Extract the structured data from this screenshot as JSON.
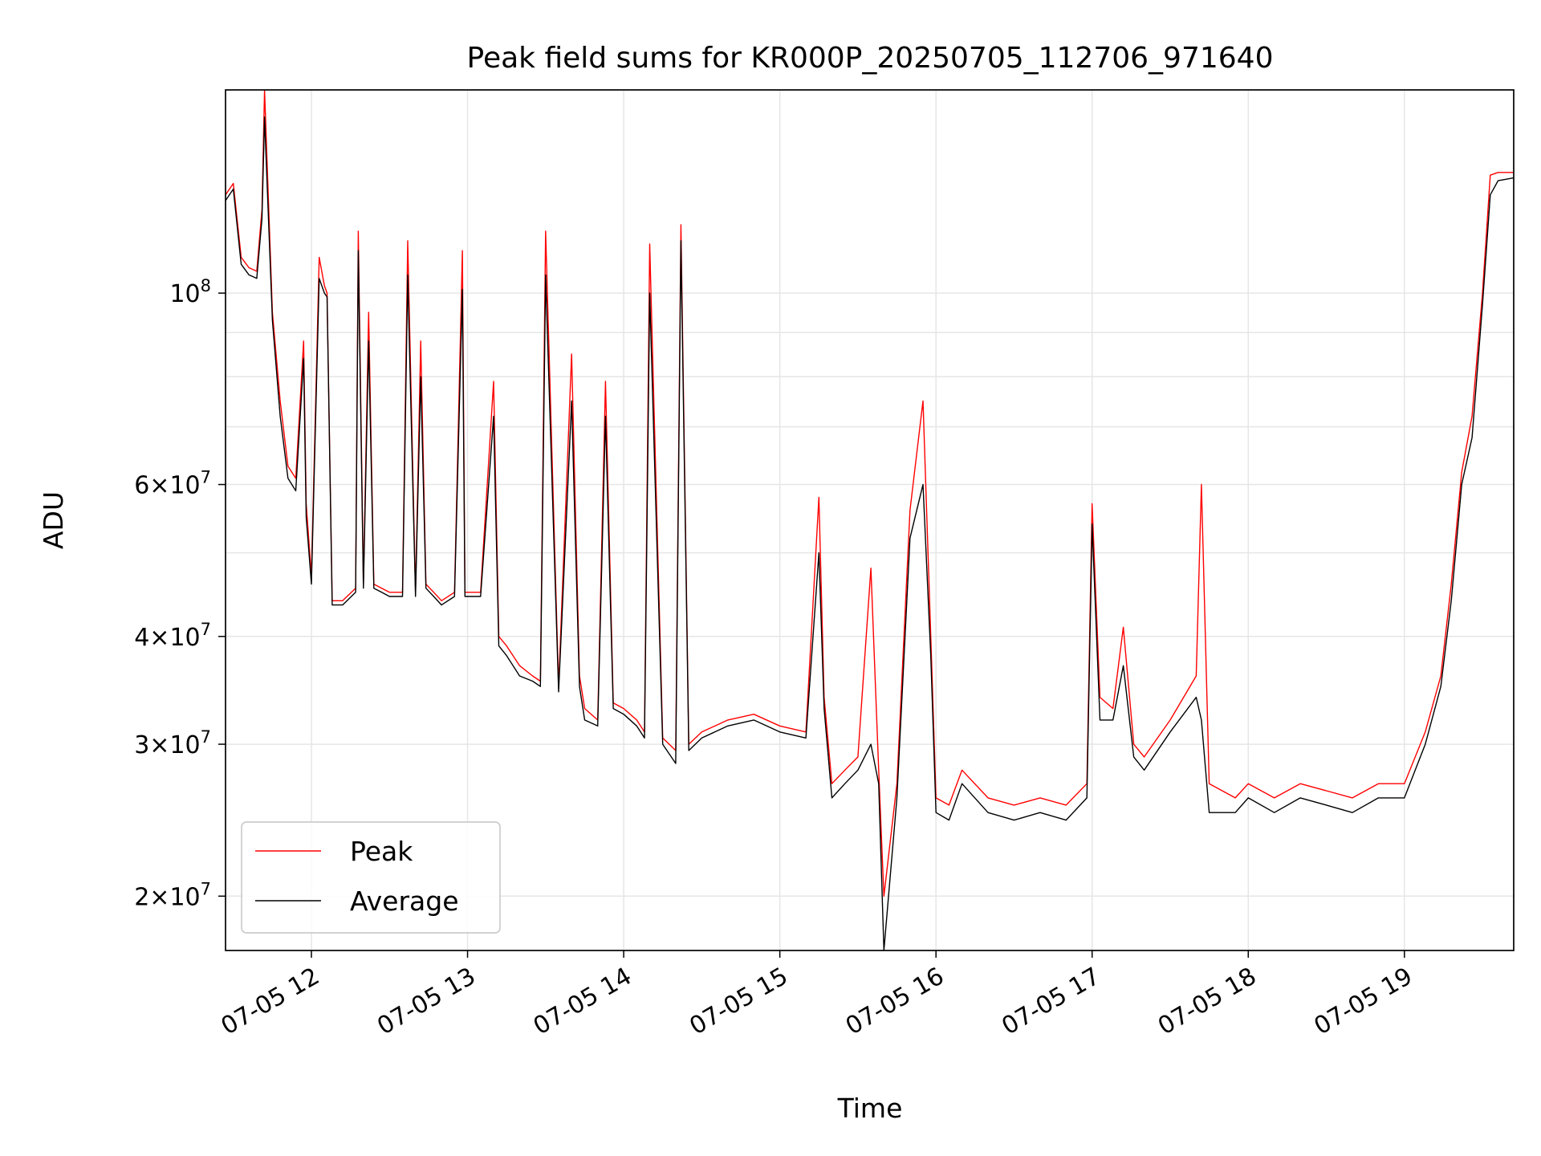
{
  "chart_data": {
    "type": "line",
    "title": "Peak field sums for KR000P_20250705_112706_971640",
    "xlabel": "Time",
    "ylabel": "ADU",
    "yscale": "log",
    "ylim": [
      17300000,
      172000000
    ],
    "xlim": [
      "2025-07-05 11:27",
      "2025-07-05 19:42"
    ],
    "grid": true,
    "legend_position": "lower-left",
    "x_ticks": [
      {
        "x": "2025-07-05 12:00",
        "label": "07-05 12"
      },
      {
        "x": "2025-07-05 13:00",
        "label": "07-05 13"
      },
      {
        "x": "2025-07-05 14:00",
        "label": "07-05 14"
      },
      {
        "x": "2025-07-05 15:00",
        "label": "07-05 15"
      },
      {
        "x": "2025-07-05 16:00",
        "label": "07-05 16"
      },
      {
        "x": "2025-07-05 17:00",
        "label": "07-05 17"
      },
      {
        "x": "2025-07-05 18:00",
        "label": "07-05 18"
      },
      {
        "x": "2025-07-05 19:00",
        "label": "07-05 19"
      }
    ],
    "y_ticks": [
      {
        "value": 20000000,
        "mantissa": "2",
        "exp": "7"
      },
      {
        "value": 30000000,
        "mantissa": "3",
        "exp": "7"
      },
      {
        "value": 40000000,
        "mantissa": "4",
        "exp": "7"
      },
      {
        "value": 60000000,
        "mantissa": "6",
        "exp": "7"
      },
      {
        "value": 100000000,
        "mantissa": "",
        "exp": "8"
      }
    ],
    "y_minor_grid": [
      50000000,
      70000000,
      80000000,
      90000000
    ],
    "series": [
      {
        "name": "Peak",
        "color": "#ff0000",
        "x": [
          "2025-07-05 11:27",
          "2025-07-05 11:30",
          "2025-07-05 11:33",
          "2025-07-05 11:36",
          "2025-07-05 11:39",
          "2025-07-05 11:41",
          "2025-07-05 11:42",
          "2025-07-05 11:45",
          "2025-07-05 11:48",
          "2025-07-05 11:51",
          "2025-07-05 11:54",
          "2025-07-05 11:57",
          "2025-07-05 11:58",
          "2025-07-05 12:00",
          "2025-07-05 12:03",
          "2025-07-05 12:05",
          "2025-07-05 12:06",
          "2025-07-05 12:08",
          "2025-07-05 12:12",
          "2025-07-05 12:17",
          "2025-07-05 12:18",
          "2025-07-05 12:20",
          "2025-07-05 12:22",
          "2025-07-05 12:24",
          "2025-07-05 12:27",
          "2025-07-05 12:30",
          "2025-07-05 12:33",
          "2025-07-05 12:35",
          "2025-07-05 12:37",
          "2025-07-05 12:40",
          "2025-07-05 12:42",
          "2025-07-05 12:44",
          "2025-07-05 12:47",
          "2025-07-05 12:50",
          "2025-07-05 12:55",
          "2025-07-05 12:58",
          "2025-07-05 12:59",
          "2025-07-05 13:00",
          "2025-07-05 13:05",
          "2025-07-05 13:10",
          "2025-07-05 13:12",
          "2025-07-05 13:15",
          "2025-07-05 13:20",
          "2025-07-05 13:25",
          "2025-07-05 13:28",
          "2025-07-05 13:30",
          "2025-07-05 13:35",
          "2025-07-05 13:40",
          "2025-07-05 13:43",
          "2025-07-05 13:45",
          "2025-07-05 13:50",
          "2025-07-05 13:53",
          "2025-07-05 13:56",
          "2025-07-05 14:00",
          "2025-07-05 14:05",
          "2025-07-05 14:08",
          "2025-07-05 14:10",
          "2025-07-05 14:15",
          "2025-07-05 14:20",
          "2025-07-05 14:22",
          "2025-07-05 14:25",
          "2025-07-05 14:30",
          "2025-07-05 14:40",
          "2025-07-05 14:50",
          "2025-07-05 15:00",
          "2025-07-05 15:10",
          "2025-07-05 15:15",
          "2025-07-05 15:17",
          "2025-07-05 15:20",
          "2025-07-05 15:25",
          "2025-07-05 15:30",
          "2025-07-05 15:35",
          "2025-07-05 15:38",
          "2025-07-05 15:40",
          "2025-07-05 15:45",
          "2025-07-05 15:50",
          "2025-07-05 15:55",
          "2025-07-05 15:58",
          "2025-07-05 16:00",
          "2025-07-05 16:05",
          "2025-07-05 16:10",
          "2025-07-05 16:20",
          "2025-07-05 16:30",
          "2025-07-05 16:40",
          "2025-07-05 16:50",
          "2025-07-05 16:58",
          "2025-07-05 17:00",
          "2025-07-05 17:03",
          "2025-07-05 17:08",
          "2025-07-05 17:12",
          "2025-07-05 17:16",
          "2025-07-05 17:20",
          "2025-07-05 17:30",
          "2025-07-05 17:40",
          "2025-07-05 17:42",
          "2025-07-05 17:45",
          "2025-07-05 17:55",
          "2025-07-05 18:00",
          "2025-07-05 18:10",
          "2025-07-05 18:20",
          "2025-07-05 18:30",
          "2025-07-05 18:40",
          "2025-07-05 18:50",
          "2025-07-05 19:00",
          "2025-07-05 19:08",
          "2025-07-05 19:14",
          "2025-07-05 19:18",
          "2025-07-05 19:22",
          "2025-07-05 19:26",
          "2025-07-05 19:30",
          "2025-07-05 19:33",
          "2025-07-05 19:36",
          "2025-07-05 19:42"
        ],
        "values": [
          130000000,
          134000000,
          110000000,
          107000000,
          106000000,
          125000000,
          172000000,
          95000000,
          75000000,
          63000000,
          61000000,
          88000000,
          57000000,
          47000000,
          110000000,
          102000000,
          100000000,
          44000000,
          44000000,
          45500000,
          118000000,
          46000000,
          95000000,
          46000000,
          45500000,
          45000000,
          45000000,
          45000000,
          115000000,
          45000000,
          88000000,
          46000000,
          45000000,
          44000000,
          45000000,
          112000000,
          45000000,
          45000000,
          45000000,
          79000000,
          40000000,
          39000000,
          37000000,
          36000000,
          35500000,
          118000000,
          35000000,
          85000000,
          36000000,
          33000000,
          32000000,
          79000000,
          33500000,
          33000000,
          32000000,
          31000000,
          114000000,
          30500000,
          29500000,
          120000000,
          30000000,
          31000000,
          32000000,
          32500000,
          31500000,
          31000000,
          58000000,
          34000000,
          27000000,
          28000000,
          29000000,
          48000000,
          28000000,
          20000000,
          27000000,
          56000000,
          75000000,
          40000000,
          26000000,
          25500000,
          28000000,
          26000000,
          25500000,
          26000000,
          25500000,
          27000000,
          57000000,
          34000000,
          33000000,
          41000000,
          30000000,
          29000000,
          32000000,
          36000000,
          60000000,
          27000000,
          26000000,
          27000000,
          26000000,
          27000000,
          26500000,
          26000000,
          27000000,
          27000000,
          31000000,
          36000000,
          46000000,
          62000000,
          72000000,
          100000000,
          137000000,
          138000000,
          138000000
        ]
      },
      {
        "name": "Average",
        "color": "#000000",
        "x": [
          "2025-07-05 11:27",
          "2025-07-05 11:30",
          "2025-07-05 11:33",
          "2025-07-05 11:36",
          "2025-07-05 11:39",
          "2025-07-05 11:41",
          "2025-07-05 11:42",
          "2025-07-05 11:45",
          "2025-07-05 11:48",
          "2025-07-05 11:51",
          "2025-07-05 11:54",
          "2025-07-05 11:57",
          "2025-07-05 11:58",
          "2025-07-05 12:00",
          "2025-07-05 12:03",
          "2025-07-05 12:05",
          "2025-07-05 12:06",
          "2025-07-05 12:08",
          "2025-07-05 12:12",
          "2025-07-05 12:17",
          "2025-07-05 12:18",
          "2025-07-05 12:20",
          "2025-07-05 12:22",
          "2025-07-05 12:24",
          "2025-07-05 12:27",
          "2025-07-05 12:30",
          "2025-07-05 12:33",
          "2025-07-05 12:35",
          "2025-07-05 12:37",
          "2025-07-05 12:40",
          "2025-07-05 12:42",
          "2025-07-05 12:44",
          "2025-07-05 12:47",
          "2025-07-05 12:50",
          "2025-07-05 12:55",
          "2025-07-05 12:58",
          "2025-07-05 12:59",
          "2025-07-05 13:00",
          "2025-07-05 13:05",
          "2025-07-05 13:10",
          "2025-07-05 13:12",
          "2025-07-05 13:15",
          "2025-07-05 13:20",
          "2025-07-05 13:25",
          "2025-07-05 13:28",
          "2025-07-05 13:30",
          "2025-07-05 13:35",
          "2025-07-05 13:40",
          "2025-07-05 13:43",
          "2025-07-05 13:45",
          "2025-07-05 13:50",
          "2025-07-05 13:53",
          "2025-07-05 13:56",
          "2025-07-05 14:00",
          "2025-07-05 14:05",
          "2025-07-05 14:08",
          "2025-07-05 14:10",
          "2025-07-05 14:15",
          "2025-07-05 14:20",
          "2025-07-05 14:22",
          "2025-07-05 14:25",
          "2025-07-05 14:30",
          "2025-07-05 14:40",
          "2025-07-05 14:50",
          "2025-07-05 15:00",
          "2025-07-05 15:10",
          "2025-07-05 15:15",
          "2025-07-05 15:17",
          "2025-07-05 15:20",
          "2025-07-05 15:25",
          "2025-07-05 15:30",
          "2025-07-05 15:35",
          "2025-07-05 15:38",
          "2025-07-05 15:40",
          "2025-07-05 15:45",
          "2025-07-05 15:50",
          "2025-07-05 15:55",
          "2025-07-05 15:58",
          "2025-07-05 16:00",
          "2025-07-05 16:05",
          "2025-07-05 16:10",
          "2025-07-05 16:20",
          "2025-07-05 16:30",
          "2025-07-05 16:40",
          "2025-07-05 16:50",
          "2025-07-05 16:58",
          "2025-07-05 17:00",
          "2025-07-05 17:03",
          "2025-07-05 17:08",
          "2025-07-05 17:12",
          "2025-07-05 17:16",
          "2025-07-05 17:20",
          "2025-07-05 17:30",
          "2025-07-05 17:40",
          "2025-07-05 17:42",
          "2025-07-05 17:45",
          "2025-07-05 17:55",
          "2025-07-05 18:00",
          "2025-07-05 18:10",
          "2025-07-05 18:20",
          "2025-07-05 18:30",
          "2025-07-05 18:40",
          "2025-07-05 18:50",
          "2025-07-05 19:00",
          "2025-07-05 19:08",
          "2025-07-05 19:14",
          "2025-07-05 19:18",
          "2025-07-05 19:22",
          "2025-07-05 19:26",
          "2025-07-05 19:30",
          "2025-07-05 19:33",
          "2025-07-05 19:36",
          "2025-07-05 19:42"
        ],
        "values": [
          128000000,
          132000000,
          108000000,
          105000000,
          104000000,
          122000000,
          160000000,
          93000000,
          72000000,
          61000000,
          59000000,
          84000000,
          55000000,
          46000000,
          104000000,
          100000000,
          99000000,
          43500000,
          43500000,
          45000000,
          112000000,
          45500000,
          88000000,
          45500000,
          45000000,
          44500000,
          44500000,
          44500000,
          105000000,
          44500000,
          80000000,
          45500000,
          44500000,
          43500000,
          44500000,
          101000000,
          44500000,
          44500000,
          44500000,
          72000000,
          39000000,
          38000000,
          36000000,
          35500000,
          35000000,
          105000000,
          34500000,
          75000000,
          35000000,
          32000000,
          31500000,
          72000000,
          33000000,
          32500000,
          31500000,
          30500000,
          100000000,
          30000000,
          28500000,
          115000000,
          29500000,
          30500000,
          31500000,
          32000000,
          31000000,
          30500000,
          50000000,
          33000000,
          26000000,
          27000000,
          28000000,
          30000000,
          27000000,
          17300000,
          26000000,
          52000000,
          60000000,
          38000000,
          25000000,
          24500000,
          27000000,
          25000000,
          24500000,
          25000000,
          24500000,
          26000000,
          54000000,
          32000000,
          32000000,
          37000000,
          29000000,
          28000000,
          31000000,
          34000000,
          32000000,
          25000000,
          25000000,
          26000000,
          25000000,
          26000000,
          25500000,
          25000000,
          26000000,
          26000000,
          30000000,
          35000000,
          44000000,
          60000000,
          68000000,
          97000000,
          130000000,
          135000000,
          136000000
        ]
      }
    ]
  }
}
